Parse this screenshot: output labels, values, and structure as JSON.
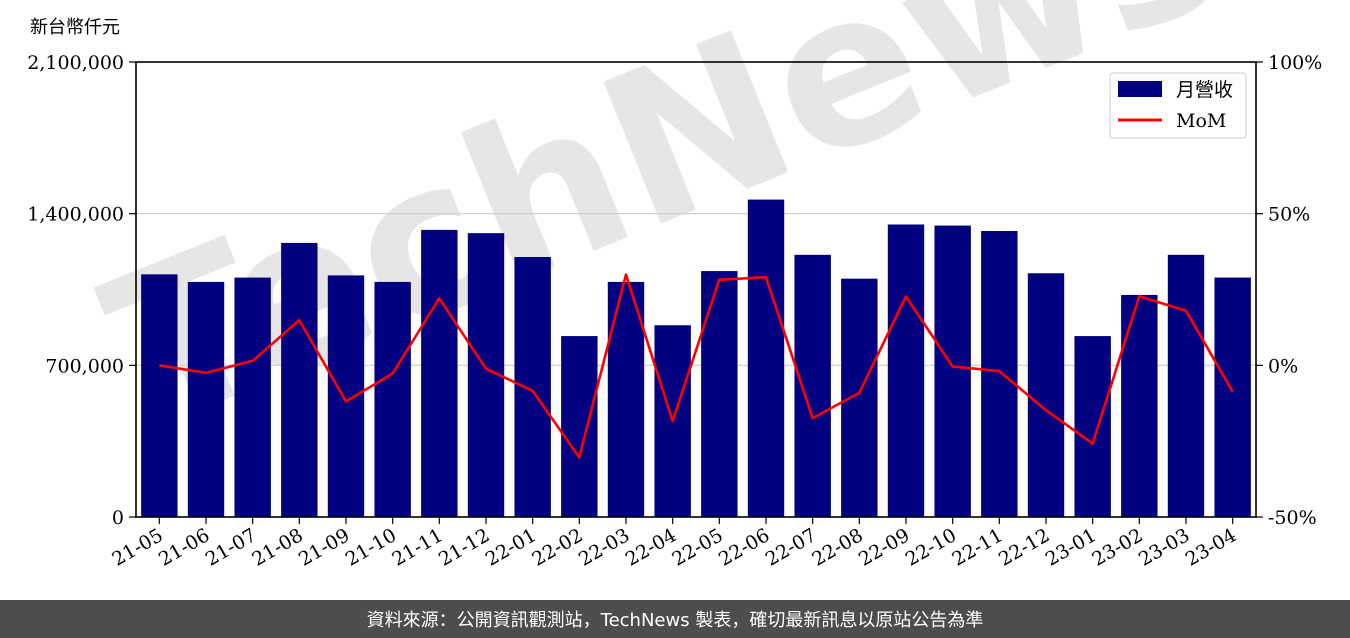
{
  "chart_data": {
    "type": "bar",
    "ylabel": "新台幣仟元",
    "categories": [
      "21-05",
      "21-06",
      "21-07",
      "21-08",
      "21-09",
      "21-10",
      "21-11",
      "21-12",
      "22-01",
      "22-02",
      "22-03",
      "22-04",
      "22-05",
      "22-06",
      "22-07",
      "22-08",
      "22-09",
      "22-10",
      "22-11",
      "22-12",
      "23-01",
      "23-02",
      "23-03",
      "23-04"
    ],
    "series": [
      {
        "name": "月營收",
        "type": "bar",
        "axis": "left",
        "color": "#000080",
        "values": [
          1120000,
          1085000,
          1105000,
          1265000,
          1115000,
          1085000,
          1325000,
          1310000,
          1200000,
          835000,
          1085000,
          885000,
          1135000,
          1465000,
          1210000,
          1100000,
          1350000,
          1345000,
          1320000,
          1125000,
          835000,
          1025000,
          1210000,
          1105000
        ]
      },
      {
        "name": "MoM",
        "type": "line",
        "axis": "right",
        "color": "#ff0000",
        "values": [
          0.0,
          -2.5,
          1.5,
          14.9,
          -11.9,
          -2.7,
          22.1,
          -1.1,
          -8.4,
          -30.4,
          29.9,
          -18.4,
          28.2,
          29.1,
          -17.4,
          -9.1,
          22.7,
          -0.4,
          -1.9,
          -14.8,
          -25.8,
          22.8,
          18.0,
          -8.7
        ]
      }
    ],
    "yticks_left": [
      "0",
      "700,000",
      "1,400,000",
      "2,100,000"
    ],
    "ylim_left": [
      0,
      2100000
    ],
    "yticks_right": [
      "-50%",
      "0%",
      "50%",
      "100%"
    ],
    "ylim_right": [
      -50,
      100
    ],
    "grid": "horizontal",
    "legend_position": "top-right"
  },
  "watermark": "TechNews",
  "footer": {
    "text": "資料來源：公開資訊觀測站，TechNews 製表，確切最新訊息以原站公告為準"
  }
}
